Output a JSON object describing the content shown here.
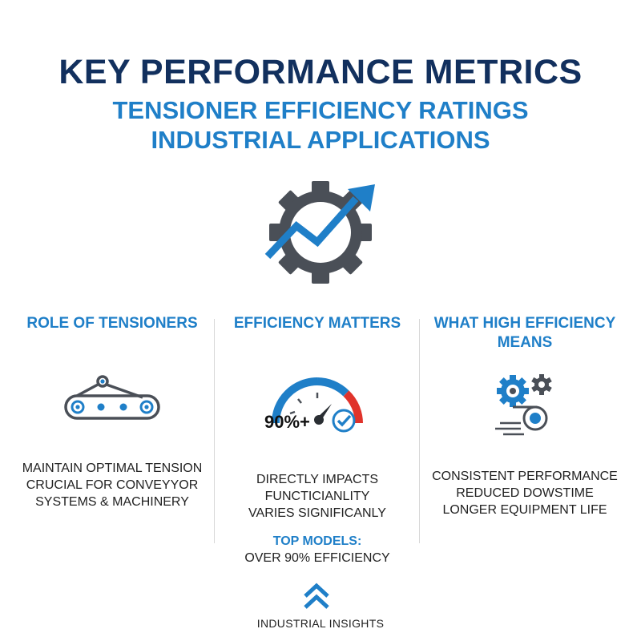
{
  "header": {
    "title": "KEY PERFORMANCE METRICS",
    "subtitle_1": "TENSIONER EFFICIENCY RATINGS",
    "subtitle_2": "INDUSTRIAL APPLICATIONS",
    "hero_icon": "gear-with-rising-arrow-icon"
  },
  "columns": [
    {
      "heading": "ROLE OF TENSIONERS",
      "icon": "conveyor-belt-icon",
      "lines": [
        "MAINTAIN OPTIMAL TENSION",
        "CRUCIAL FOR CONVEYYOR",
        "SYSTEMS & MACHINERY"
      ]
    },
    {
      "heading": "EFFICIENCY MATTERS",
      "icon": "gauge-icon",
      "gauge_value": "90%+",
      "badge_icon": "check-circle-icon",
      "lines": [
        "DIRECTLY IMPACTS",
        "FUNCTICIANLITY",
        "VARIES SIGNIFICANLY"
      ],
      "highlight_label": "TOP MODELS:",
      "highlight_value": "OVER 90% EFFICIENCY"
    },
    {
      "heading_1": "WHAT HIGH EFFICIENCY",
      "heading_2": "MEANS",
      "icon": "gears-in-motion-icon",
      "lines": [
        "CONSISTENT PERFORMANCE",
        "REDUCED DOWSTIME",
        "LONGER EQUIPMENT LIFE"
      ]
    }
  ],
  "footer": {
    "logo_icon": "double-chevron-up-icon",
    "brand": "INDUSTRIAL INSIGHTS"
  },
  "colors": {
    "navy": "#12305e",
    "blue": "#1f7fc8",
    "gray": "#4a4f57",
    "red": "#e0332b"
  }
}
